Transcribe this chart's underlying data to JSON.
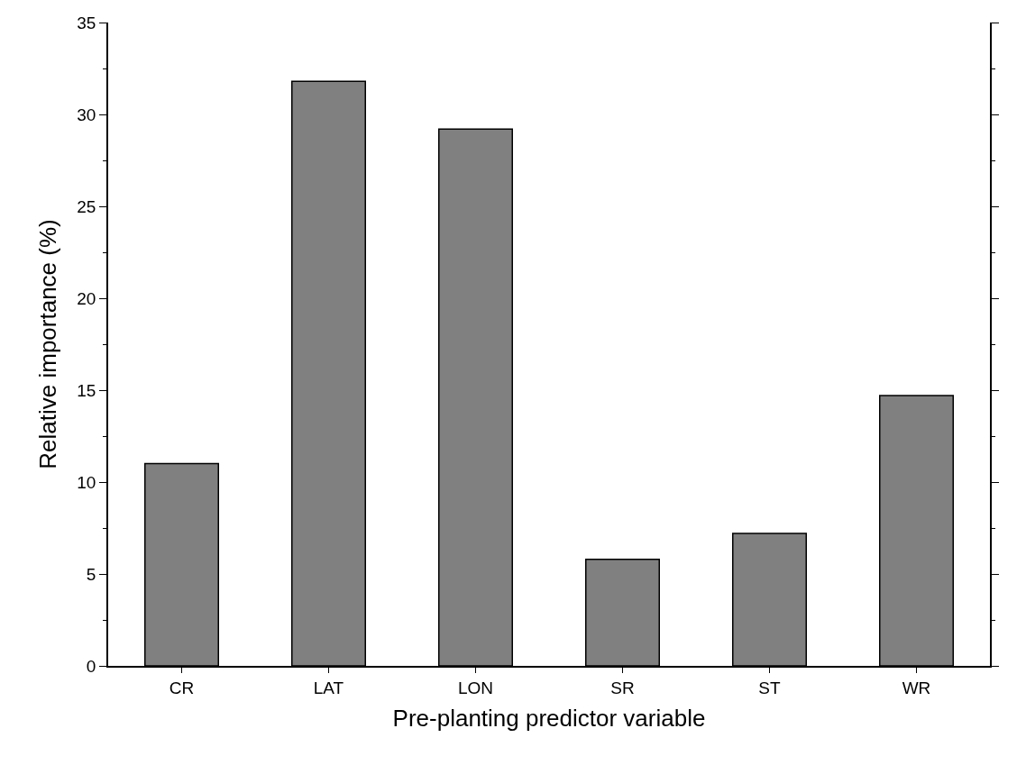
{
  "chart_data": {
    "type": "bar",
    "xlabel": "Pre-planting predictor variable",
    "ylabel": "Relative importance (%)",
    "categories": [
      "CR",
      "LAT",
      "LON",
      "SR",
      "ST",
      "WR"
    ],
    "values": [
      11.0,
      31.8,
      29.2,
      5.8,
      7.2,
      14.7
    ],
    "color": "#808080",
    "ylim": [
      0,
      35
    ],
    "yticks": [
      0,
      5,
      10,
      15,
      20,
      25,
      30,
      35
    ]
  }
}
